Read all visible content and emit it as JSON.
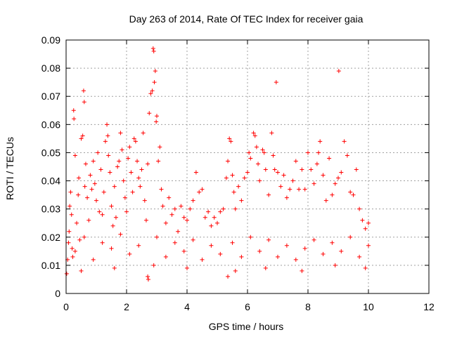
{
  "chart_data": {
    "type": "scatter",
    "title": "Day 263 of 2014, Rate Of TEC Index for receiver gaia",
    "xlabel": "GPS time / hours",
    "ylabel": "ROTI / TECUs",
    "xlim": [
      0,
      12
    ],
    "ylim": [
      0,
      0.09
    ],
    "xticks": [
      0,
      2,
      4,
      6,
      8,
      10,
      12
    ],
    "yticks": [
      0,
      0.01,
      0.02,
      0.03,
      0.04,
      0.05,
      0.06,
      0.07,
      0.08,
      0.09
    ],
    "xtick_labels": [
      "0",
      "2",
      "4",
      "6",
      "8",
      "10",
      "12"
    ],
    "ytick_labels": [
      "0",
      "0.01",
      "0.02",
      "0.03",
      "0.04",
      "0.05",
      "0.06",
      "0.07",
      "0.08",
      "0.09"
    ],
    "grid": true,
    "legend": "none",
    "marker": "plus",
    "color": "#ff0000",
    "series": [
      {
        "values": [
          [
            0.02,
            0.007
          ],
          [
            0.05,
            0.012
          ],
          [
            0.08,
            0.018
          ],
          [
            0.1,
            0.022
          ],
          [
            0.12,
            0.031
          ],
          [
            0.15,
            0.036
          ],
          [
            0.18,
            0.028
          ],
          [
            0.2,
            0.016
          ],
          [
            0.22,
            0.013
          ],
          [
            0.25,
            0.065
          ],
          [
            0.26,
            0.062
          ],
          [
            0.3,
            0.049
          ],
          [
            0.35,
            0.025
          ],
          [
            0.4,
            0.035
          ],
          [
            0.42,
            0.041
          ],
          [
            0.45,
            0.019
          ],
          [
            0.5,
            0.055
          ],
          [
            0.55,
            0.056
          ],
          [
            0.58,
            0.072
          ],
          [
            0.6,
            0.068
          ],
          [
            0.62,
            0.038
          ],
          [
            0.65,
            0.046
          ],
          [
            0.7,
            0.034
          ],
          [
            0.75,
            0.026
          ],
          [
            0.8,
            0.042
          ],
          [
            0.85,
            0.037
          ],
          [
            0.9,
            0.047
          ],
          [
            0.95,
            0.039
          ],
          [
            1.0,
            0.033
          ],
          [
            1.05,
            0.05
          ],
          [
            1.1,
            0.029
          ],
          [
            1.15,
            0.044
          ],
          [
            1.2,
            0.028
          ],
          [
            1.25,
            0.036
          ],
          [
            1.3,
            0.054
          ],
          [
            1.35,
            0.06
          ],
          [
            1.38,
            0.056
          ],
          [
            1.4,
            0.049
          ],
          [
            1.45,
            0.043
          ],
          [
            1.5,
            0.031
          ],
          [
            1.55,
            0.024
          ],
          [
            1.6,
            0.038
          ],
          [
            1.65,
            0.027
          ],
          [
            1.7,
            0.045
          ],
          [
            1.75,
            0.047
          ],
          [
            1.8,
            0.057
          ],
          [
            1.85,
            0.051
          ],
          [
            1.9,
            0.04
          ],
          [
            1.95,
            0.034
          ],
          [
            2.0,
            0.029
          ],
          [
            2.05,
            0.048
          ],
          [
            2.1,
            0.052
          ],
          [
            2.15,
            0.043
          ],
          [
            2.2,
            0.036
          ],
          [
            2.25,
            0.055
          ],
          [
            2.3,
            0.054
          ],
          [
            2.35,
            0.047
          ],
          [
            2.4,
            0.041
          ],
          [
            2.45,
            0.038
          ],
          [
            2.5,
            0.044
          ],
          [
            2.55,
            0.057
          ],
          [
            2.6,
            0.033
          ],
          [
            2.65,
            0.026
          ],
          [
            2.7,
            0.046
          ],
          [
            2.75,
            0.064
          ],
          [
            2.8,
            0.071
          ],
          [
            2.85,
            0.072
          ],
          [
            2.88,
            0.087
          ],
          [
            2.9,
            0.086
          ],
          [
            2.92,
            0.075
          ],
          [
            2.95,
            0.079
          ],
          [
            2.98,
            0.061
          ],
          [
            3.0,
            0.063
          ],
          [
            3.05,
            0.047
          ],
          [
            3.1,
            0.052
          ],
          [
            3.15,
            0.037
          ],
          [
            3.2,
            0.031
          ],
          [
            3.3,
            0.025
          ],
          [
            3.4,
            0.034
          ],
          [
            3.5,
            0.028
          ],
          [
            3.6,
            0.03
          ],
          [
            3.7,
            0.022
          ],
          [
            3.8,
            0.031
          ],
          [
            3.9,
            0.027
          ],
          [
            4.0,
            0.026
          ],
          [
            4.1,
            0.03
          ],
          [
            4.2,
            0.033
          ],
          [
            4.3,
            0.043
          ],
          [
            4.4,
            0.036
          ],
          [
            4.5,
            0.037
          ],
          [
            4.6,
            0.027
          ],
          [
            4.7,
            0.029
          ],
          [
            4.8,
            0.024
          ],
          [
            4.9,
            0.027
          ],
          [
            5.0,
            0.025
          ],
          [
            5.1,
            0.029
          ],
          [
            5.2,
            0.03
          ],
          [
            5.3,
            0.041
          ],
          [
            5.35,
            0.047
          ],
          [
            5.4,
            0.055
          ],
          [
            5.45,
            0.054
          ],
          [
            5.5,
            0.042
          ],
          [
            5.55,
            0.036
          ],
          [
            5.6,
            0.03
          ],
          [
            5.7,
            0.038
          ],
          [
            5.8,
            0.033
          ],
          [
            5.9,
            0.041
          ],
          [
            6.0,
            0.043
          ],
          [
            6.05,
            0.05
          ],
          [
            6.1,
            0.048
          ],
          [
            6.2,
            0.057
          ],
          [
            6.25,
            0.056
          ],
          [
            6.3,
            0.052
          ],
          [
            6.35,
            0.046
          ],
          [
            6.4,
            0.04
          ],
          [
            6.5,
            0.051
          ],
          [
            6.55,
            0.05
          ],
          [
            6.6,
            0.044
          ],
          [
            6.7,
            0.035
          ],
          [
            6.8,
            0.057
          ],
          [
            6.85,
            0.049
          ],
          [
            6.9,
            0.044
          ],
          [
            6.95,
            0.075
          ],
          [
            7.0,
            0.043
          ],
          [
            7.1,
            0.038
          ],
          [
            7.2,
            0.042
          ],
          [
            7.3,
            0.034
          ],
          [
            7.4,
            0.037
          ],
          [
            7.5,
            0.04
          ],
          [
            7.6,
            0.047
          ],
          [
            7.7,
            0.037
          ],
          [
            7.8,
            0.044
          ],
          [
            7.9,
            0.037
          ],
          [
            8.0,
            0.05
          ],
          [
            8.1,
            0.044
          ],
          [
            8.2,
            0.039
          ],
          [
            8.3,
            0.046
          ],
          [
            8.35,
            0.05
          ],
          [
            8.4,
            0.054
          ],
          [
            8.5,
            0.042
          ],
          [
            8.6,
            0.033
          ],
          [
            8.7,
            0.048
          ],
          [
            8.8,
            0.035
          ],
          [
            8.9,
            0.039
          ],
          [
            9.0,
            0.041
          ],
          [
            9.02,
            0.079
          ],
          [
            9.1,
            0.043
          ],
          [
            9.2,
            0.054
          ],
          [
            9.3,
            0.049
          ],
          [
            9.4,
            0.036
          ],
          [
            9.5,
            0.035
          ],
          [
            9.6,
            0.044
          ],
          [
            9.7,
            0.03
          ],
          [
            9.8,
            0.026
          ],
          [
            9.9,
            0.023
          ],
          [
            10.0,
            0.025
          ],
          [
            0.3,
            0.015
          ],
          [
            0.6,
            0.02
          ],
          [
            0.9,
            0.012
          ],
          [
            1.2,
            0.018
          ],
          [
            1.5,
            0.016
          ],
          [
            1.8,
            0.021
          ],
          [
            2.1,
            0.014
          ],
          [
            2.4,
            0.017
          ],
          [
            2.7,
            0.006
          ],
          [
            2.72,
            0.005
          ],
          [
            3.0,
            0.02
          ],
          [
            3.3,
            0.013
          ],
          [
            3.6,
            0.018
          ],
          [
            3.9,
            0.015
          ],
          [
            4.2,
            0.019
          ],
          [
            4.5,
            0.012
          ],
          [
            4.8,
            0.017
          ],
          [
            5.1,
            0.014
          ],
          [
            5.35,
            0.006
          ],
          [
            5.5,
            0.018
          ],
          [
            5.8,
            0.013
          ],
          [
            6.1,
            0.02
          ],
          [
            6.4,
            0.015
          ],
          [
            6.7,
            0.019
          ],
          [
            7.0,
            0.013
          ],
          [
            7.3,
            0.017
          ],
          [
            7.6,
            0.012
          ],
          [
            7.9,
            0.016
          ],
          [
            8.2,
            0.019
          ],
          [
            8.5,
            0.014
          ],
          [
            8.8,
            0.018
          ],
          [
            9.1,
            0.015
          ],
          [
            9.4,
            0.02
          ],
          [
            9.7,
            0.013
          ],
          [
            10.0,
            0.017
          ],
          [
            0.5,
            0.008
          ],
          [
            1.6,
            0.009
          ],
          [
            2.9,
            0.01
          ],
          [
            4.0,
            0.009
          ],
          [
            5.6,
            0.008
          ],
          [
            6.6,
            0.009
          ],
          [
            7.8,
            0.008
          ],
          [
            8.9,
            0.01
          ],
          [
            9.9,
            0.009
          ]
        ]
      }
    ]
  }
}
